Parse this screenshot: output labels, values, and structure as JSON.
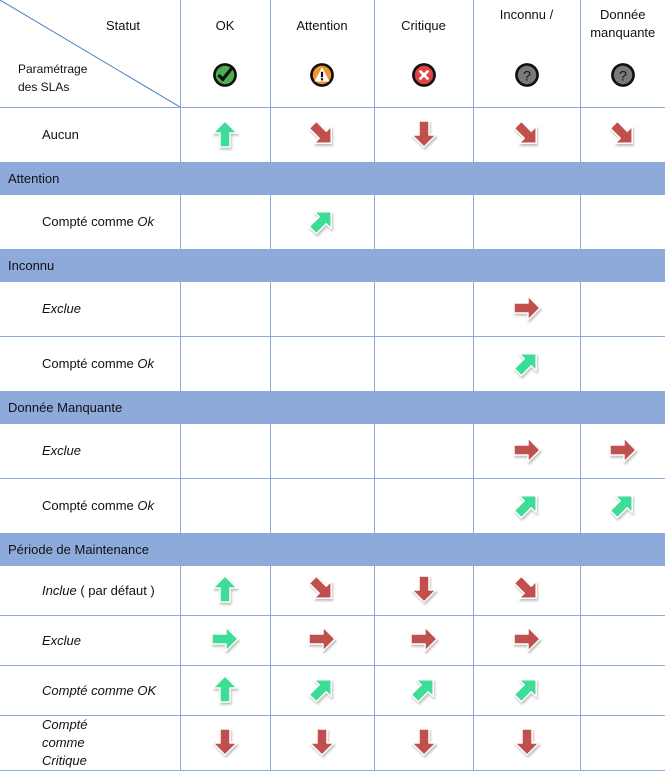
{
  "header": {
    "corner_top": "Statut",
    "corner_bottom": [
      "Paramétrage",
      "des SLAs"
    ],
    "columns": [
      {
        "label": "OK",
        "icon": "ok-check-icon",
        "color": "#4caf50"
      },
      {
        "label": "Attention",
        "icon": "warning-icon",
        "color": "#f0962d"
      },
      {
        "label": "Critique",
        "icon": "critical-x-icon",
        "color": "#e04343"
      },
      {
        "label": "Inconnu /",
        "icon": "unknown-question-icon",
        "color": "#7a7a7a"
      },
      {
        "label": "Donnée manquante",
        "icon": "missing-question-icon",
        "color": "#7a7a7a"
      }
    ]
  },
  "colors": {
    "green": "#3ddc97",
    "red": "#c0504d",
    "section": "#8eaadb",
    "grid": "#8eaadb"
  },
  "rows": [
    {
      "type": "row",
      "label": [
        {
          "text": "Aucun",
          "italic": false
        }
      ],
      "cells": [
        [
          "up",
          "green"
        ],
        [
          "down-right",
          "red"
        ],
        [
          "down",
          "red"
        ],
        [
          "down-right",
          "red"
        ],
        [
          "down-right",
          "red"
        ]
      ]
    },
    {
      "type": "section",
      "title": "Attention"
    },
    {
      "type": "row",
      "label": [
        {
          "text": "Compté comme ",
          "italic": false
        },
        {
          "text": "Ok",
          "italic": true
        }
      ],
      "cells": [
        null,
        [
          "up-right",
          "green"
        ],
        null,
        null,
        null
      ]
    },
    {
      "type": "section",
      "title": "Inconnu"
    },
    {
      "type": "row",
      "label": [
        {
          "text": "Exclue",
          "italic": true
        }
      ],
      "cells": [
        null,
        null,
        null,
        [
          "right",
          "red"
        ],
        null
      ]
    },
    {
      "type": "row",
      "label": [
        {
          "text": "Compté comme ",
          "italic": false
        },
        {
          "text": "Ok",
          "italic": true
        }
      ],
      "cells": [
        null,
        null,
        null,
        [
          "up-right",
          "green"
        ],
        null
      ]
    },
    {
      "type": "section",
      "title": "Donnée Manquante"
    },
    {
      "type": "row",
      "label": [
        {
          "text": "Exclue",
          "italic": true
        }
      ],
      "cells": [
        null,
        null,
        null,
        [
          "right",
          "red"
        ],
        [
          "right",
          "red"
        ]
      ]
    },
    {
      "type": "row",
      "label": [
        {
          "text": "Compté comme ",
          "italic": false
        },
        {
          "text": "Ok",
          "italic": true
        }
      ],
      "cells": [
        null,
        null,
        null,
        [
          "up-right",
          "green"
        ],
        [
          "up-right",
          "green"
        ]
      ]
    },
    {
      "type": "section",
      "title": "Période de Maintenance"
    },
    {
      "type": "row",
      "label": [
        {
          "text": "Inclue",
          "italic": true
        },
        {
          "text": " ( par défaut )",
          "italic": false
        }
      ],
      "cells": [
        [
          "up",
          "green"
        ],
        [
          "down-right",
          "red"
        ],
        [
          "down",
          "red"
        ],
        [
          "down-right",
          "red"
        ],
        null
      ]
    },
    {
      "type": "row",
      "label": [
        {
          "text": "Exclue",
          "italic": true
        }
      ],
      "cells": [
        [
          "right",
          "green"
        ],
        [
          "right",
          "red"
        ],
        [
          "right",
          "red"
        ],
        [
          "right",
          "red"
        ],
        null
      ]
    },
    {
      "type": "row",
      "label": [
        {
          "text": "Compté comme OK",
          "italic": true
        }
      ],
      "cells": [
        [
          "up",
          "green"
        ],
        [
          "up-right",
          "green"
        ],
        [
          "up-right",
          "green"
        ],
        [
          "up-right",
          "green"
        ],
        null
      ]
    },
    {
      "type": "row",
      "label": [
        {
          "text": "Compté comme Critique",
          "italic": true
        }
      ],
      "cells": [
        [
          "down",
          "red"
        ],
        [
          "down",
          "red"
        ],
        [
          "down",
          "red"
        ],
        [
          "down",
          "red"
        ],
        null
      ]
    }
  ]
}
